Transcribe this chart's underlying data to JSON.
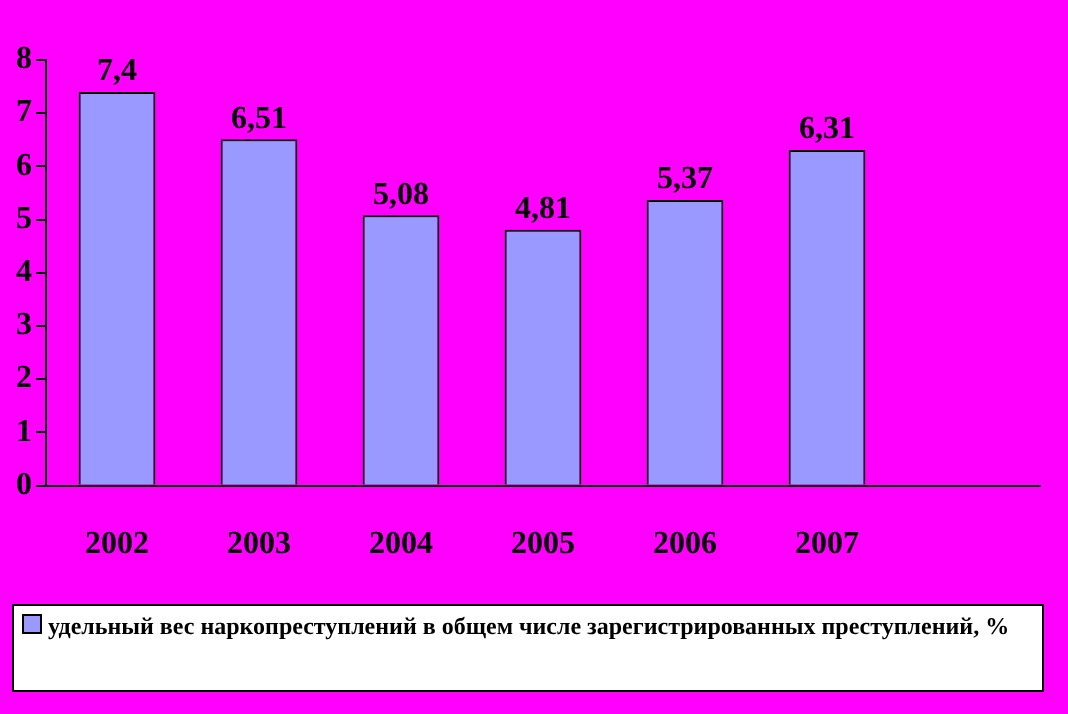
{
  "chart_data": {
    "type": "bar",
    "categories": [
      "2002",
      "2003",
      "2004",
      "2005",
      "2006",
      "2007",
      null
    ],
    "series": [
      {
        "name": "удельный вес наркопреступлений в общем числе зарегистрированных преступлений, %",
        "color": "#9999ff",
        "values": [
          7.4,
          6.51,
          5.08,
          4.81,
          5.37,
          6.31,
          null
        ]
      }
    ],
    "value_labels": [
      "7,4",
      "6,51",
      "5,08",
      "4,81",
      "5,37",
      "6,31",
      null
    ],
    "ylim": [
      0,
      8
    ],
    "yticks": [
      0,
      1,
      2,
      3,
      4,
      5,
      6,
      7,
      8
    ],
    "grid": false,
    "legend": "bottom"
  }
}
